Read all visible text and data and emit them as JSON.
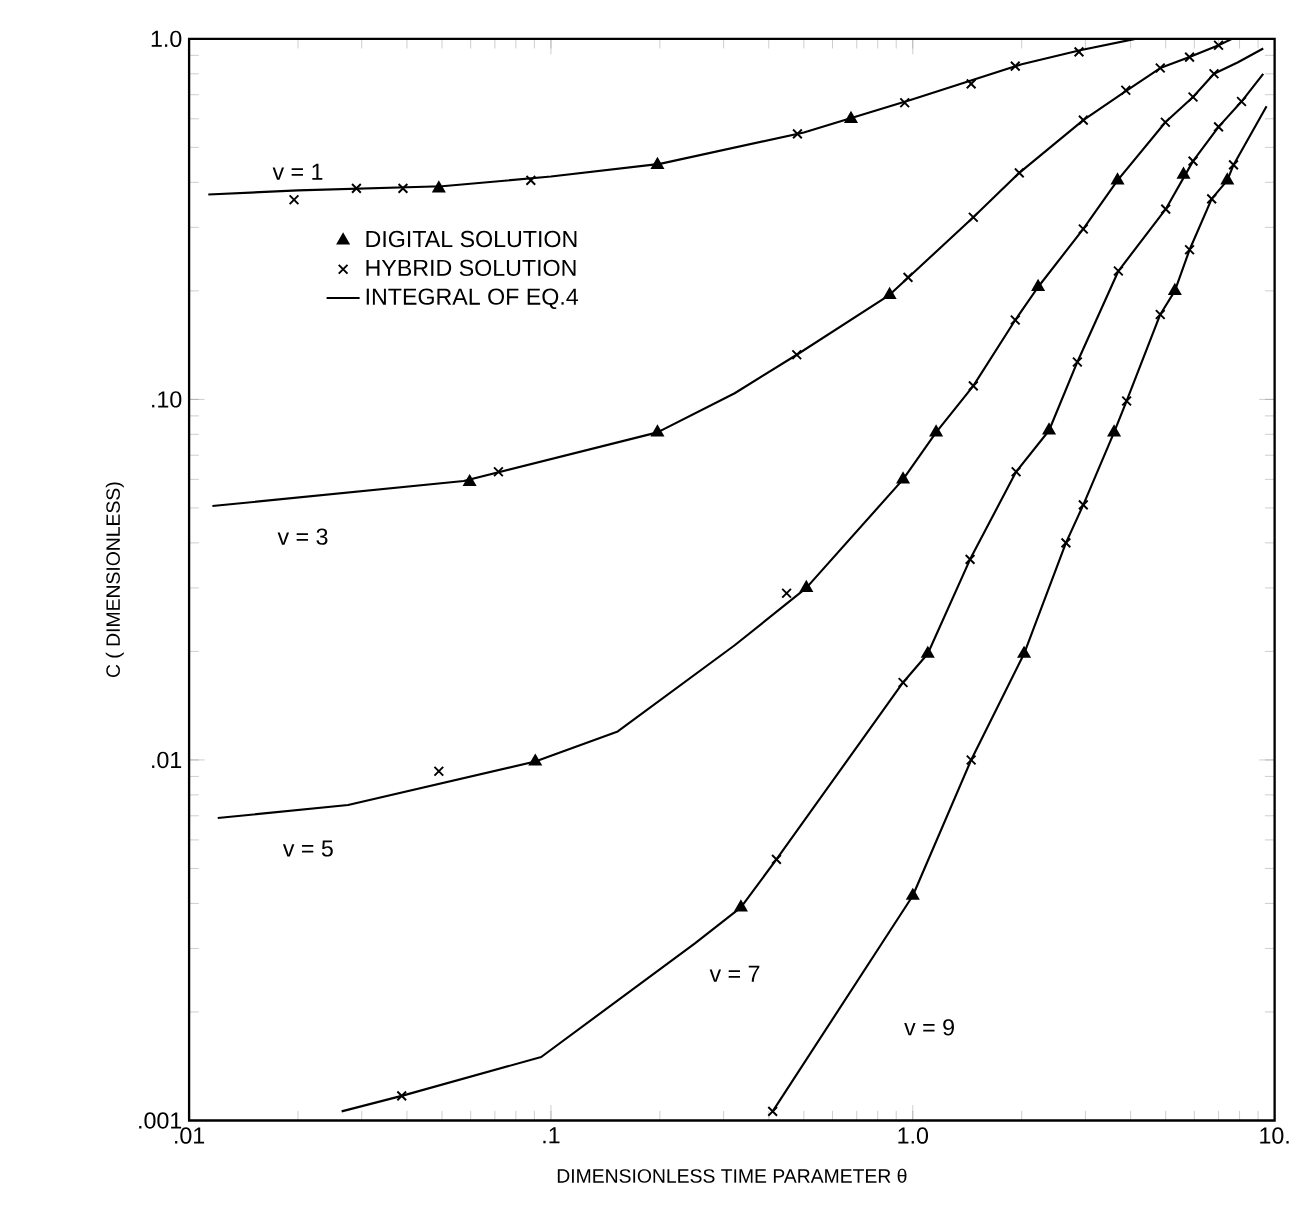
{
  "chart_data": {
    "type": "line",
    "xlabel": "DIMENSIONLESS   TIME  PARAMETER  θ",
    "ylabel": "C  ( DIMENSIONLESS)",
    "log": "xy",
    "legend": "top left",
    "xlim": [
      0.01,
      10
    ],
    "ylim": [
      0.001,
      1.0
    ],
    "xticks": [
      {
        "value": 0.01,
        "label": ".01"
      },
      {
        "value": 0.1,
        "label": ".1"
      },
      {
        "value": 1,
        "label": "1.0"
      },
      {
        "value": 10,
        "label": "10."
      }
    ],
    "yticks": [
      {
        "value": 0.001,
        "label": ".001"
      },
      {
        "value": 0.01,
        "label": ".01"
      },
      {
        "value": 0.1,
        "label": ".10"
      },
      {
        "value": 1,
        "label": "1.0"
      }
    ],
    "series": [
      {
        "name": "DIGITAL SOLUTION",
        "type": "scatter",
        "marker": "triangle",
        "color": "#000000",
        "x": [
          0.049,
          0.197,
          0.675,
          0.0596,
          0.197,
          0.863,
          0.0905,
          0.508,
          0.94,
          1.16,
          2.22,
          3.68,
          0.335,
          1.1,
          2.38,
          5.6,
          1.0,
          2.03,
          3.6,
          5.3,
          7.4
        ],
        "values": [
          0.385,
          0.447,
          0.6,
          0.059,
          0.081,
          0.195,
          0.0099,
          0.03,
          0.06,
          0.081,
          0.205,
          0.405,
          0.0039,
          0.0197,
          0.082,
          0.42,
          0.0042,
          0.0197,
          0.081,
          0.2,
          0.405
        ]
      },
      {
        "name": "HYBRID SOLUTION",
        "type": "scatter",
        "marker": "cross",
        "color": "#000000",
        "x": [
          0.0195,
          0.029,
          0.039,
          0.088,
          0.48,
          0.95,
          1.45,
          1.92,
          2.88,
          0.0716,
          0.478,
          0.97,
          1.47,
          1.97,
          2.96,
          3.88,
          4.83,
          5.82,
          7.0,
          0.049,
          0.448,
          1.47,
          1.92,
          2.96,
          4.99,
          5.95,
          6.8,
          0.0387,
          0.42,
          0.94,
          1.44,
          1.93,
          2.85,
          3.7,
          5.0,
          5.95,
          7.0,
          8.1,
          0.41,
          1.45,
          2.65,
          2.96,
          3.9,
          4.83,
          5.82,
          6.7,
          7.7
        ],
        "values": [
          0.358,
          0.385,
          0.385,
          0.405,
          0.545,
          0.665,
          0.75,
          0.84,
          0.92,
          0.063,
          0.133,
          0.218,
          0.32,
          0.425,
          0.595,
          0.72,
          0.83,
          0.89,
          0.96,
          0.0093,
          0.029,
          0.109,
          0.166,
          0.297,
          0.587,
          0.69,
          0.8,
          0.00117,
          0.0053,
          0.0164,
          0.036,
          0.063,
          0.127,
          0.227,
          0.337,
          0.458,
          0.57,
          0.67,
          0.00106,
          0.01,
          0.04,
          0.051,
          0.099,
          0.172,
          0.26,
          0.36,
          0.447
        ]
      },
      {
        "name": "INTEGRAL OF EQ.4",
        "marker": "none",
        "color": "#000000",
        "x": [
          0.0113,
          0.02,
          0.05,
          0.1,
          0.2,
          0.5,
          1.0,
          2.0,
          2.9,
          4.12
        ],
        "values": [
          0.37,
          0.38,
          0.39,
          0.415,
          0.45,
          0.55,
          0.68,
          0.85,
          0.93,
          1.0
        ]
      },
      {
        "marker": "none",
        "color": "#000000",
        "x": [
          0.0116,
          0.0574,
          0.197,
          0.322,
          0.478,
          0.863,
          1.47,
          1.97,
          2.96,
          3.88,
          4.83,
          5.82,
          7.0,
          7.63
        ],
        "values": [
          0.0506,
          0.0594,
          0.081,
          0.104,
          0.133,
          0.195,
          0.32,
          0.425,
          0.595,
          0.716,
          0.83,
          0.89,
          0.96,
          1.0
        ]
      },
      {
        "marker": "none",
        "color": "#000000",
        "x": [
          0.012,
          0.0275,
          0.0905,
          0.153,
          0.322,
          0.508,
          0.94,
          1.16,
          1.47,
          1.92,
          2.22,
          2.96,
          3.68,
          4.99,
          5.95,
          6.8,
          7.9,
          9.3
        ],
        "values": [
          0.0069,
          0.0075,
          0.0099,
          0.012,
          0.0208,
          0.03,
          0.06,
          0.081,
          0.109,
          0.166,
          0.205,
          0.297,
          0.405,
          0.587,
          0.69,
          0.8,
          0.86,
          0.94
        ]
      },
      {
        "marker": "none",
        "color": "#000000",
        "x": [
          0.0264,
          0.0387,
          0.094,
          0.25,
          0.335,
          0.42,
          0.94,
          1.1,
          1.44,
          1.93,
          2.38,
          2.85,
          3.7,
          5.0,
          5.95,
          7.0,
          8.1,
          9.3
        ],
        "values": [
          0.00106,
          0.00117,
          0.0015,
          0.0031,
          0.0039,
          0.0053,
          0.0164,
          0.0197,
          0.036,
          0.063,
          0.082,
          0.127,
          0.227,
          0.337,
          0.458,
          0.57,
          0.67,
          0.8
        ]
      },
      {
        "marker": "none",
        "color": "#000000",
        "x": [
          0.41,
          1.0,
          1.45,
          2.03,
          2.65,
          2.96,
          3.6,
          3.9,
          4.83,
          5.3,
          5.82,
          6.7,
          7.4,
          7.7,
          9.5
        ],
        "values": [
          0.00106,
          0.0042,
          0.01,
          0.0197,
          0.04,
          0.051,
          0.081,
          0.099,
          0.172,
          0.2,
          0.26,
          0.36,
          0.405,
          0.447,
          0.65
        ]
      }
    ],
    "annotations": [
      "v = 1",
      "v = 3",
      "v = 5",
      "v = 7",
      "v = 9"
    ]
  }
}
